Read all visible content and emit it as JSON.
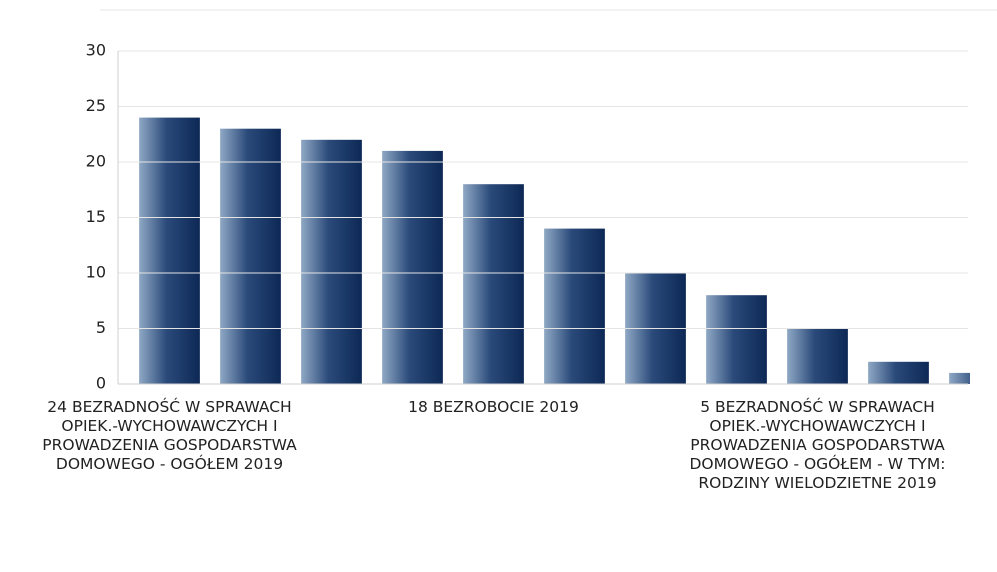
{
  "chart_data": {
    "type": "bar",
    "categories": [
      "24 BEZRADNOŚĆ W SPRAWACH OPIEK.-WYCHOWAWCZYCH I PROWADZENIA GOSPODARSTWA DOMOWEGO - OGÓŁEM 2019",
      null,
      null,
      null,
      "18 BEZROBOCIE 2019",
      null,
      null,
      null,
      "5 BEZRADNOŚĆ W SPRAWACH OPIEK.-WYCHOWAWCZYCH I PROWADZENIA GOSPODARSTWA DOMOWEGO - OGÓŁEM - W TYM: RODZINY WIELODZIETNE 2019",
      null,
      null
    ],
    "values": [
      24,
      23,
      22,
      21,
      18,
      14,
      10,
      8,
      5,
      2,
      1
    ],
    "color": "#1a3a6b",
    "ylim": [
      0,
      30
    ],
    "yticks": [
      0,
      5,
      10,
      15,
      20,
      25,
      30
    ],
    "grid": true
  }
}
